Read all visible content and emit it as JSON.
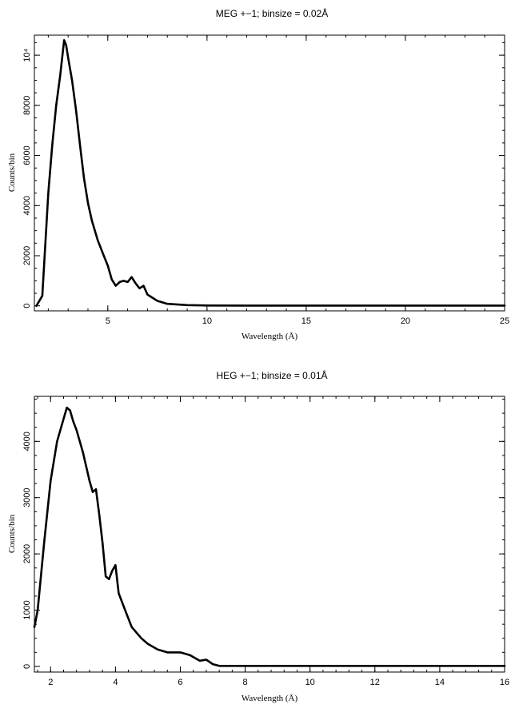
{
  "colors": {
    "series": "#000000",
    "background": "#ffffff"
  },
  "chart_data": [
    {
      "type": "line",
      "title": "MEG +−1; binsize = 0.02Å",
      "xlabel": "Wavelength (Å)",
      "ylabel": "Counts/bin",
      "xlim": [
        1.3,
        25
      ],
      "ylim": [
        -200,
        10800
      ],
      "xticks": [
        5,
        10,
        15,
        20,
        25
      ],
      "xtick_labels": [
        "5",
        "10",
        "15",
        "20",
        "25"
      ],
      "yticks": [
        0,
        2000,
        4000,
        6000,
        8000,
        10000
      ],
      "ytick_labels": [
        "0",
        "2000",
        "4000",
        "6000",
        "8000",
        "10⁴"
      ],
      "grid": false,
      "series": [
        {
          "x": [
            1.4,
            1.7,
            2.0,
            2.2,
            2.4,
            2.6,
            2.8,
            2.9,
            3.0,
            3.2,
            3.4,
            3.6,
            3.8,
            4.0,
            4.2,
            4.5,
            4.8,
            5.0,
            5.2,
            5.4,
            5.6,
            5.8,
            6.0,
            6.2,
            6.4,
            6.6,
            6.8,
            7.0,
            7.5,
            8.0,
            9.0,
            10.0,
            12.0,
            15.0,
            20.0,
            25.0
          ],
          "y": [
            0,
            400,
            4500,
            6400,
            8000,
            9200,
            10600,
            10400,
            9900,
            9000,
            7800,
            6400,
            5100,
            4100,
            3400,
            2600,
            2000,
            1600,
            1050,
            800,
            950,
            1000,
            950,
            1150,
            900,
            700,
            800,
            450,
            200,
            80,
            30,
            15,
            10,
            10,
            10,
            10
          ]
        }
      ]
    },
    {
      "type": "line",
      "title": "HEG +−1; binsize = 0.01Å",
      "xlabel": "Wavelength (Å)",
      "ylabel": "Counts/bin",
      "xlim": [
        1.5,
        16
      ],
      "ylim": [
        -100,
        4800
      ],
      "xticks": [
        2,
        4,
        6,
        8,
        10,
        12,
        14,
        16
      ],
      "xtick_labels": [
        "2",
        "4",
        "6",
        "8",
        "10",
        "12",
        "14",
        "16"
      ],
      "yticks": [
        0,
        1000,
        2000,
        3000,
        4000
      ],
      "ytick_labels": [
        "0",
        "1000",
        "2000",
        "3000",
        "4000"
      ],
      "grid": false,
      "series": [
        {
          "x": [
            1.5,
            1.6,
            1.8,
            2.0,
            2.2,
            2.4,
            2.5,
            2.6,
            2.7,
            2.8,
            3.0,
            3.2,
            3.3,
            3.4,
            3.5,
            3.6,
            3.7,
            3.8,
            3.9,
            4.0,
            4.1,
            4.3,
            4.5,
            4.8,
            5.0,
            5.3,
            5.6,
            6.0,
            6.3,
            6.6,
            6.8,
            7.0,
            7.2,
            8.0,
            10.0,
            12.0,
            14.0,
            16.0
          ],
          "y": [
            700,
            1000,
            2200,
            3300,
            4000,
            4400,
            4600,
            4550,
            4350,
            4200,
            3800,
            3300,
            3100,
            3150,
            2700,
            2200,
            1600,
            1550,
            1700,
            1800,
            1300,
            1000,
            700,
            500,
            400,
            300,
            250,
            250,
            200,
            100,
            120,
            40,
            10,
            10,
            10,
            10,
            10,
            10
          ]
        }
      ]
    }
  ]
}
